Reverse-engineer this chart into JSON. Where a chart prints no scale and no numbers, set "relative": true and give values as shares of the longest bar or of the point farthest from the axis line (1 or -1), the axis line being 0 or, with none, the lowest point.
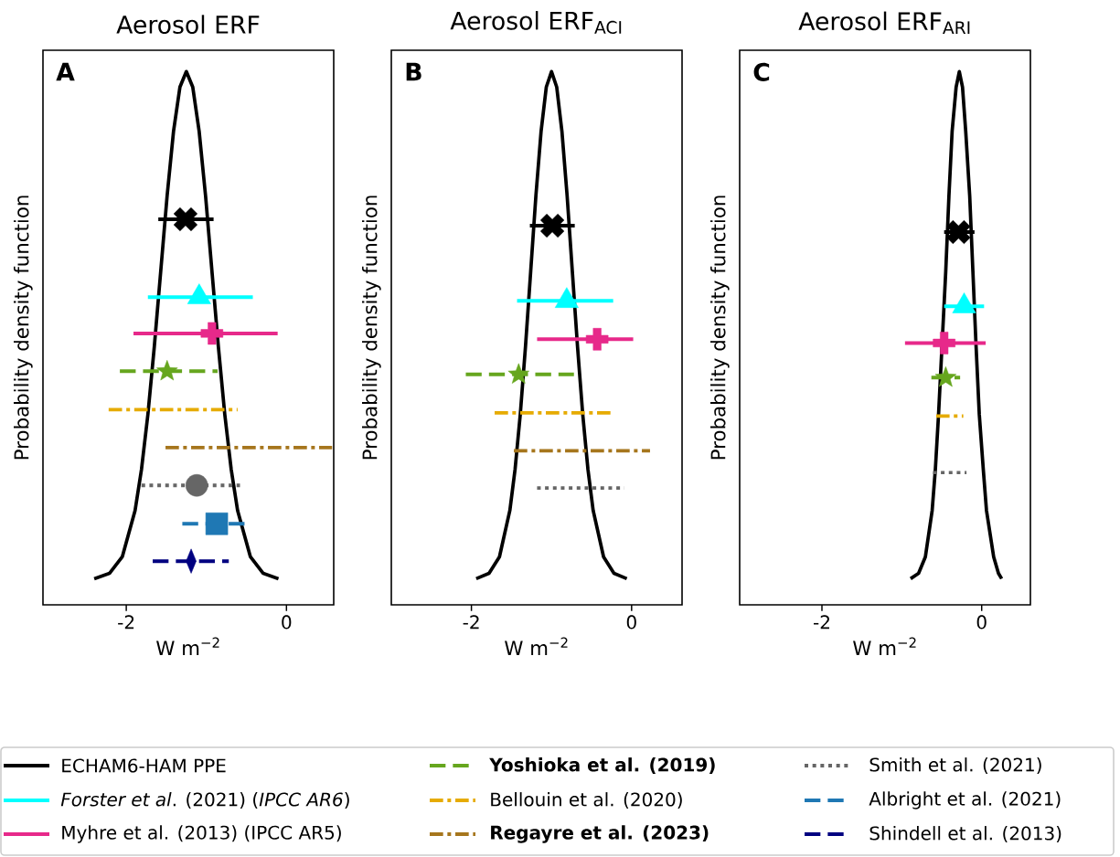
{
  "chart_data": [
    {
      "type": "scatter",
      "title": "Aerosol ERF",
      "xlabel": "W m$^{−2}$",
      "ylabel": "Probability density function",
      "annotations": [
        "A"
      ],
      "relative": true,
      "xlim": [
        -3.04,
        0.59
      ],
      "xticks": [
        -2,
        0
      ],
      "legend": "bottom",
      "series": [
        {
          "type": "line",
          "color": "#000000",
          "x": [
            -2.4,
            -2.21,
            -2.05,
            -1.89,
            -1.81,
            -1.73,
            -1.65,
            -1.57,
            -1.49,
            -1.41,
            -1.33,
            -1.25,
            -1.17,
            -1.09,
            -1.01,
            -0.93,
            -0.85,
            -0.77,
            -0.69,
            -0.61,
            -0.45,
            -0.29,
            -0.1
          ],
          "values": [
            0.049,
            0.059,
            0.09,
            0.177,
            0.254,
            0.357,
            0.484,
            0.625,
            0.767,
            0.888,
            0.971,
            1.0,
            0.971,
            0.888,
            0.767,
            0.625,
            0.484,
            0.357,
            0.254,
            0.177,
            0.09,
            0.059,
            0.049
          ]
        },
        {
          "name": "ECHAM6-HAM PPE",
          "color": "#000000",
          "x": [
            -1.26
          ],
          "values": [
            0.723
          ],
          "xerrors": [
            [
              -1.6,
              -0.91
            ]
          ],
          "marker": "cross",
          "line_style": "solid"
        },
        {
          "name": "*Forster et al*. (2021) (*IPCC AR6*)",
          "color": "#00ffff",
          "x": [
            -1.09
          ],
          "values": [
            0.577
          ],
          "xerrors": [
            [
              -1.73,
              -0.42
            ]
          ],
          "marker": "triangle",
          "line_style": "solid"
        },
        {
          "name": "Myhre et al. (2013) (IPCC AR5)",
          "color": "#e7298a",
          "x": [
            -0.93
          ],
          "values": [
            0.509
          ],
          "xerrors": [
            [
              -1.91,
              -0.11
            ]
          ],
          "marker": "plus",
          "line_style": "solid"
        },
        {
          "name": "**Yoshioka et al. (2019)**",
          "color": "#66a61e",
          "x": [
            -1.49
          ],
          "values": [
            0.438
          ],
          "xerrors": [
            [
              -2.08,
              -0.86
            ]
          ],
          "marker": "star",
          "line_style": "dashed"
        },
        {
          "name": "Bellouin et al. (2020)",
          "type": "line",
          "color": "#e6ab02",
          "x": [
            -2.22,
            -0.61
          ],
          "values": [
            0.366,
            0.366
          ],
          "line_style": "dashdot"
        },
        {
          "name": "**Regayre et al. (2023)**",
          "type": "line",
          "color": "#a6761d",
          "x": [
            -1.51,
            0.57
          ],
          "values": [
            0.295,
            0.295
          ],
          "line_style": "dashdot"
        },
        {
          "name": "Smith et al. (2021)",
          "color": "#666666",
          "x": [
            -1.12
          ],
          "values": [
            0.224
          ],
          "xerrors": [
            [
              -1.81,
              -0.58
            ]
          ],
          "marker": "circle",
          "line_style": "dotted"
        },
        {
          "name": "Albright et al. (2021)",
          "color": "#1f78b4",
          "x": [
            -0.87
          ],
          "values": [
            0.152
          ],
          "xerrors": [
            [
              -1.3,
              -0.51
            ]
          ],
          "marker": "square",
          "line_style": "dashed"
        },
        {
          "name": "Shindell et al. (2013)",
          "color": "#000080",
          "x": [
            -1.19
          ],
          "values": [
            0.082
          ],
          "xerrors": [
            [
              -1.67,
              -0.72
            ]
          ],
          "marker": "diamond",
          "line_style": "dashed"
        }
      ]
    },
    {
      "type": "scatter",
      "title": "Aerosol ERF$_{ACI}$",
      "xlabel": "W m$^{−2}$",
      "ylabel": "Probability density function",
      "annotations": [
        "B"
      ],
      "relative": true,
      "xlim": [
        -3.0,
        0.63
      ],
      "xticks": [
        -2,
        0
      ],
      "series": [
        {
          "type": "line",
          "color": "#000000",
          "x": [
            -1.94,
            -1.78,
            -1.65,
            -1.52,
            -1.455,
            -1.39,
            -1.325,
            -1.26,
            -1.195,
            -1.13,
            -1.065,
            -1.0,
            -0.935,
            -0.87,
            -0.805,
            -0.74,
            -0.675,
            -0.61,
            -0.545,
            -0.48,
            -0.35,
            -0.22,
            -0.06
          ],
          "values": [
            0.049,
            0.059,
            0.09,
            0.177,
            0.254,
            0.357,
            0.484,
            0.625,
            0.767,
            0.888,
            0.971,
            1.0,
            0.971,
            0.888,
            0.767,
            0.625,
            0.484,
            0.357,
            0.254,
            0.177,
            0.09,
            0.059,
            0.049
          ]
        },
        {
          "color": "#000000",
          "x": [
            -0.99
          ],
          "values": [
            0.711
          ],
          "xerrors": [
            [
              -1.27,
              -0.71
            ]
          ],
          "marker": "cross",
          "line_style": "solid"
        },
        {
          "color": "#00ffff",
          "x": [
            -0.81
          ],
          "values": [
            0.57
          ],
          "xerrors": [
            [
              -1.43,
              -0.23
            ]
          ],
          "marker": "triangle",
          "line_style": "solid"
        },
        {
          "color": "#e7298a",
          "x": [
            -0.43
          ],
          "values": [
            0.498
          ],
          "xerrors": [
            [
              -1.18,
              0.02
            ]
          ],
          "marker": "plus",
          "line_style": "solid"
        },
        {
          "color": "#66a61e",
          "x": [
            -1.41
          ],
          "values": [
            0.432
          ],
          "xerrors": [
            [
              -2.07,
              -0.72
            ]
          ],
          "marker": "star",
          "line_style": "dashed"
        },
        {
          "type": "line",
          "color": "#e6ab02",
          "x": [
            -1.71,
            -0.25
          ],
          "values": [
            0.36,
            0.36
          ],
          "line_style": "dashdot"
        },
        {
          "type": "line",
          "color": "#a6761d",
          "x": [
            -1.47,
            0.23
          ],
          "values": [
            0.289,
            0.289
          ],
          "line_style": "dashdot"
        },
        {
          "type": "line",
          "color": "#666666",
          "x": [
            -1.18,
            -0.09
          ],
          "values": [
            0.219,
            0.219
          ],
          "line_style": "dotted"
        }
      ]
    },
    {
      "type": "scatter",
      "title": "Aerosol ERF$_{ARI}$",
      "xlabel": "W m$^{−2}$",
      "ylabel": "Probability density function",
      "annotations": [
        "C"
      ],
      "relative": true,
      "xlim": [
        -3.03,
        0.61
      ],
      "xticks": [
        -2,
        0
      ],
      "series": [
        {
          "type": "line",
          "color": "#000000",
          "x": [
            -0.89,
            -0.79,
            -0.705,
            -0.62,
            -0.58,
            -0.54,
            -0.49,
            -0.45,
            -0.41,
            -0.37,
            -0.32,
            -0.28,
            -0.24,
            -0.2,
            -0.15,
            -0.11,
            -0.07,
            -0.03,
            0.02,
            0.06,
            0.15,
            0.21,
            0.25
          ],
          "values": [
            0.049,
            0.059,
            0.09,
            0.177,
            0.254,
            0.357,
            null,
            0.625,
            0.767,
            0.888,
            0.971,
            1.0,
            0.971,
            0.888,
            0.767,
            0.625,
            0.484,
            0.357,
            0.254,
            0.177,
            0.09,
            0.059,
            0.049
          ]
        },
        {
          "color": "#000000",
          "x": [
            -0.29
          ],
          "values": [
            0.699
          ],
          "xerrors": [
            [
              -0.47,
              -0.09
            ]
          ],
          "marker": "cross",
          "line_style": "solid"
        },
        {
          "color": "#00ffff",
          "x": [
            -0.22
          ],
          "values": [
            0.56
          ],
          "xerrors": [
            [
              -0.47,
              0.03
            ]
          ],
          "marker": "triangle",
          "line_style": "solid"
        },
        {
          "color": "#e7298a",
          "x": [
            -0.47
          ],
          "values": [
            0.491
          ],
          "xerrors": [
            [
              -0.96,
              0.05
            ]
          ],
          "marker": "plus",
          "line_style": "solid"
        },
        {
          "color": "#66a61e",
          "x": [
            -0.45
          ],
          "values": [
            0.426
          ],
          "xerrors": [
            [
              -0.63,
              -0.27
            ]
          ],
          "marker": "star",
          "line_style": "dashed"
        },
        {
          "type": "line",
          "color": "#e6ab02",
          "x": [
            -0.57,
            -0.23
          ],
          "values": [
            0.354,
            0.354
          ],
          "line_style": "dashdot"
        },
        {
          "type": "line",
          "color": "#666666",
          "x": [
            -0.61,
            -0.19
          ],
          "values": [
            0.248,
            0.248
          ],
          "line_style": "dotted"
        }
      ]
    }
  ]
}
